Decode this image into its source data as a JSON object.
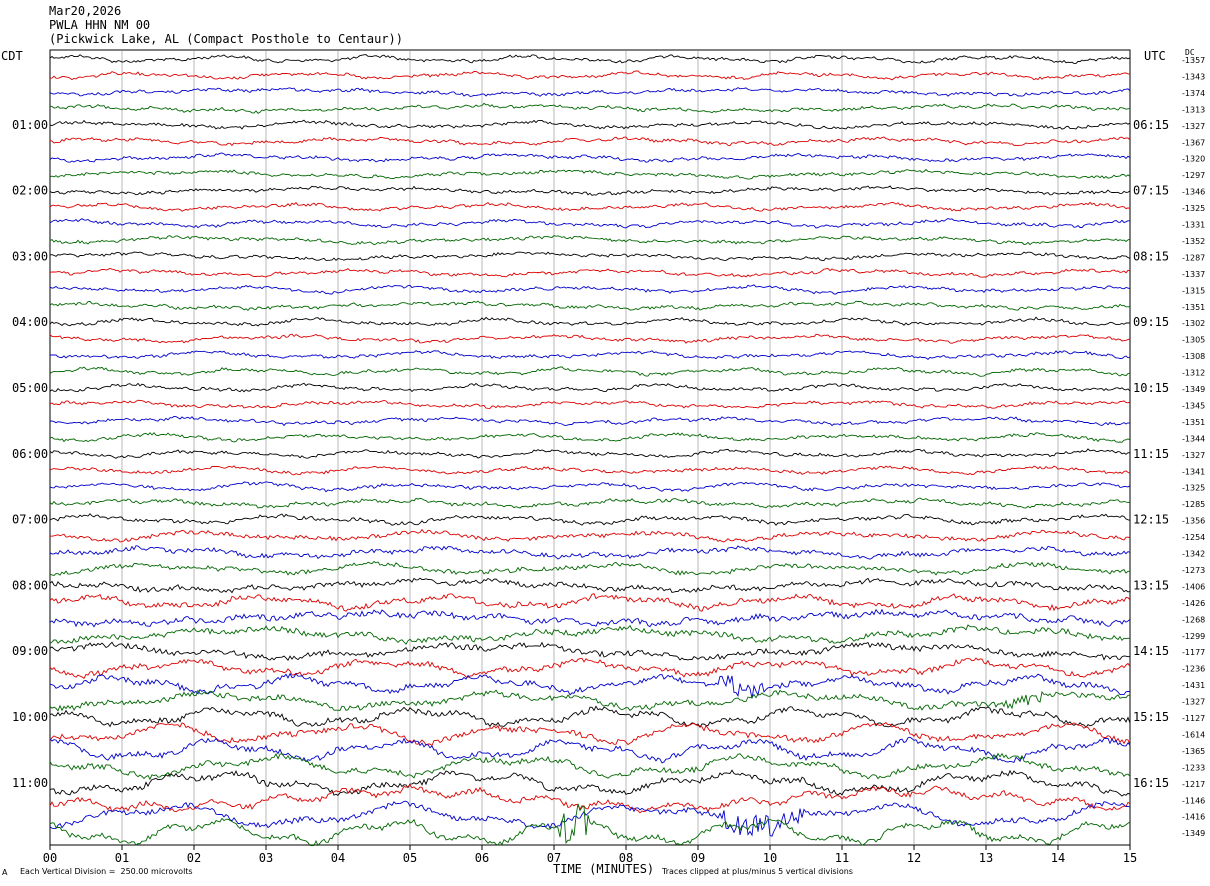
{
  "header": {
    "date": "Mar20,2026",
    "station": "PWLA HHN NM 00",
    "location": "(Pickwick Lake, AL (Compact Posthole to Centaur))"
  },
  "axis": {
    "left_tz": "CDT",
    "right_tz": "UTC",
    "dc_label": "DC",
    "xlabel": "TIME (MINUTES)"
  },
  "footer": {
    "scale_note": "Each Vertical Division =  250.00 microvolts",
    "clip_note": "Traces clipped at plus/minus 5 vertical divisions",
    "corner_mark": "A"
  },
  "chart_data": {
    "type": "line",
    "title": "PWLA HHN NM 00",
    "xlabel": "TIME (MINUTES)",
    "xlim": [
      0,
      15
    ],
    "x_ticks": [
      "00",
      "01",
      "02",
      "03",
      "04",
      "05",
      "06",
      "07",
      "08",
      "09",
      "10",
      "11",
      "12",
      "13",
      "14",
      "15"
    ],
    "grid": "vertical lines every minute",
    "trace_colors": [
      "#000000",
      "#dd0000",
      "#0000cc",
      "#006600"
    ],
    "left_hour_labels": [
      "01:00",
      "02:00",
      "03:00",
      "04:00",
      "05:00",
      "06:00",
      "07:00",
      "08:00",
      "09:00",
      "10:00",
      "11:00"
    ],
    "right_hour_labels": [
      "06:15",
      "07:15",
      "08:15",
      "09:15",
      "10:15",
      "11:15",
      "12:15",
      "13:15",
      "14:15",
      "15:15",
      "16:15"
    ],
    "dc_offsets": [
      "-1357",
      "-1343",
      "-1374",
      "-1313",
      "-1327",
      "-1367",
      "-1320",
      "-1297",
      "-1346",
      "-1325",
      "-1331",
      "-1352",
      "-1287",
      "-1337",
      "-1315",
      "-1351",
      "-1302",
      "-1305",
      "-1308",
      "-1312",
      "-1349",
      "-1345",
      "-1351",
      "-1344",
      "-1327",
      "-1341",
      "-1325",
      "-1285",
      "-1356",
      "-1254",
      "-1342",
      "-1273",
      "-1406",
      "-1426",
      "-1268",
      "-1299",
      "-1177",
      "-1236",
      "-1431",
      "-1327",
      "-1127",
      "-1614",
      "-1365",
      "-1233",
      "-1217",
      "-1146",
      "-1416",
      "-1349"
    ],
    "trace_amplitude_levels": [
      1,
      1,
      1,
      1,
      1,
      1,
      1,
      1,
      1,
      1,
      1,
      1,
      1,
      1,
      1,
      1,
      1,
      1,
      1,
      1,
      1,
      1,
      1,
      1,
      1,
      1,
      1.1,
      1.2,
      1.3,
      1.4,
      1.5,
      1.6,
      1.8,
      2,
      2,
      2.2,
      2.3,
      2.4,
      2.5,
      2.6,
      2.8,
      3,
      3.2,
      3.4,
      3.5,
      3.6,
      3.8,
      4
    ]
  }
}
